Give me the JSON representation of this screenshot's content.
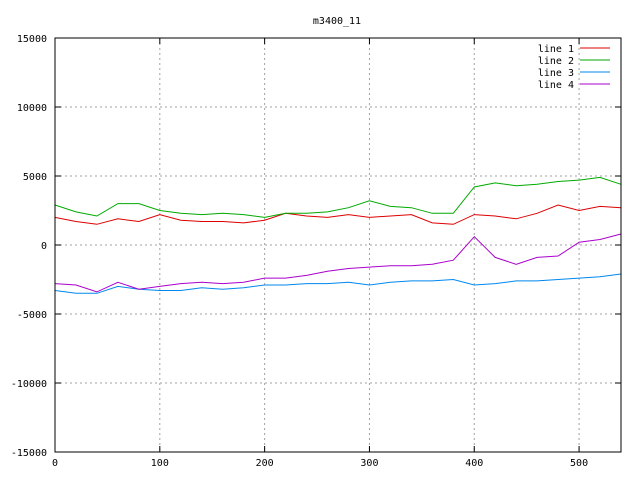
{
  "chart_data": {
    "type": "line",
    "title": "m3400_11",
    "xlabel": "",
    "ylabel": "",
    "xlim": [
      0,
      540
    ],
    "ylim": [
      -15000,
      15000
    ],
    "xticks": [
      0,
      100,
      200,
      300,
      400,
      500
    ],
    "yticks": [
      -15000,
      -10000,
      -5000,
      0,
      5000,
      10000,
      15000
    ],
    "grid": true,
    "legend_position": "top-right",
    "x": [
      0,
      20,
      40,
      60,
      80,
      100,
      120,
      140,
      160,
      180,
      200,
      220,
      240,
      260,
      280,
      300,
      320,
      340,
      360,
      380,
      400,
      420,
      440,
      460,
      480,
      500,
      520,
      540
    ],
    "series": [
      {
        "name": "line 1",
        "color": "#dd0000",
        "values": [
          2000,
          1700,
          1500,
          1900,
          1700,
          2200,
          1800,
          1700,
          1700,
          1600,
          1800,
          2300,
          2100,
          2000,
          2200,
          2000,
          2100,
          2200,
          1600,
          1500,
          2200,
          2100,
          1900,
          2300,
          2900,
          2500,
          2800,
          2700
        ]
      },
      {
        "name": "line 2",
        "color": "#00aa00",
        "values": [
          2900,
          2400,
          2100,
          3000,
          3000,
          2500,
          2300,
          2200,
          2300,
          2200,
          2000,
          2300,
          2300,
          2400,
          2700,
          3200,
          2800,
          2700,
          2300,
          2300,
          4200,
          4500,
          4300,
          4400,
          4600,
          4700,
          4900,
          4400
        ]
      },
      {
        "name": "line 3",
        "color": "#0088ee",
        "values": [
          -3300,
          -3500,
          -3500,
          -3000,
          -3200,
          -3300,
          -3300,
          -3100,
          -3200,
          -3100,
          -2900,
          -2900,
          -2800,
          -2800,
          -2700,
          -2900,
          -2700,
          -2600,
          -2600,
          -2500,
          -2900,
          -2800,
          -2600,
          -2600,
          -2500,
          -2400,
          -2300,
          -2100
        ]
      },
      {
        "name": "line 4",
        "color": "#aa00cc",
        "values": [
          -2800,
          -2900,
          -3400,
          -2700,
          -3200,
          -3000,
          -2800,
          -2700,
          -2800,
          -2700,
          -2400,
          -2400,
          -2200,
          -1900,
          -1700,
          -1600,
          -1500,
          -1500,
          -1400,
          -1100,
          600,
          -900,
          -1400,
          -900,
          -800,
          200,
          400,
          800
        ]
      }
    ]
  }
}
